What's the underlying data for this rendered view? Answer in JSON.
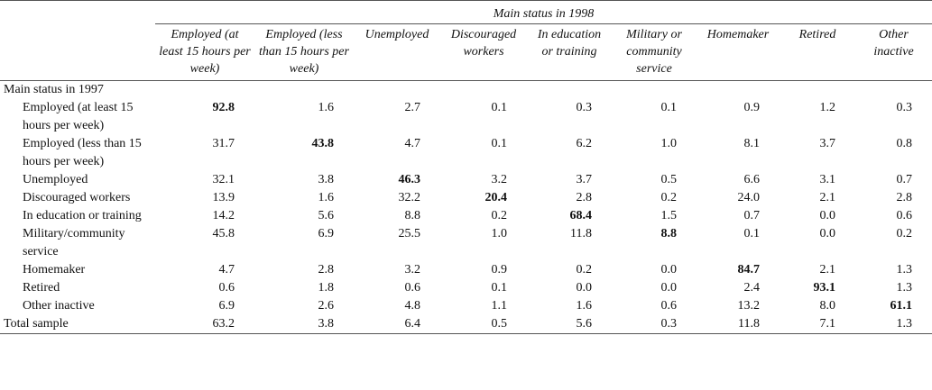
{
  "header": {
    "group_title": "Main status in 1998",
    "columns": [
      "Employed (at least 15 hours per week)",
      "Employed (less than 15 hours per week)",
      "Unemployed",
      "Discouraged workers",
      "In education or training",
      "Military or community service",
      "Homemaker",
      "Retired",
      "Other inactive"
    ]
  },
  "stub_title": "Main status in 1997",
  "rows": [
    {
      "label": "Employed (at least 15 hours per week)",
      "values": [
        "92.8",
        "1.6",
        "2.7",
        "0.1",
        "0.3",
        "0.1",
        "0.9",
        "1.2",
        "0.3"
      ],
      "bold_index": 0
    },
    {
      "label": "Employed (less than 15 hours per week)",
      "values": [
        "31.7",
        "43.8",
        "4.7",
        "0.1",
        "6.2",
        "1.0",
        "8.1",
        "3.7",
        "0.8"
      ],
      "bold_index": 1
    },
    {
      "label": "Unemployed",
      "values": [
        "32.1",
        "3.8",
        "46.3",
        "3.2",
        "3.7",
        "0.5",
        "6.6",
        "3.1",
        "0.7"
      ],
      "bold_index": 2
    },
    {
      "label": "Discouraged workers",
      "values": [
        "13.9",
        "1.6",
        "32.2",
        "20.4",
        "2.8",
        "0.2",
        "24.0",
        "2.1",
        "2.8"
      ],
      "bold_index": 3
    },
    {
      "label": "In education or training",
      "values": [
        "14.2",
        "5.6",
        "8.8",
        "0.2",
        "68.4",
        "1.5",
        "0.7",
        "0.0",
        "0.6"
      ],
      "bold_index": 4
    },
    {
      "label": "Military/community service",
      "values": [
        "45.8",
        "6.9",
        "25.5",
        "1.0",
        "11.8",
        "8.8",
        "0.1",
        "0.0",
        "0.2"
      ],
      "bold_index": 5
    },
    {
      "label": "Homemaker",
      "values": [
        "4.7",
        "2.8",
        "3.2",
        "0.9",
        "0.2",
        "0.0",
        "84.7",
        "2.1",
        "1.3"
      ],
      "bold_index": 6
    },
    {
      "label": "Retired",
      "values": [
        "0.6",
        "1.8",
        "0.6",
        "0.1",
        "0.0",
        "0.0",
        "2.4",
        "93.1",
        "1.3"
      ],
      "bold_index": 7
    },
    {
      "label": "Other inactive",
      "values": [
        "6.9",
        "2.6",
        "4.8",
        "1.1",
        "1.6",
        "0.6",
        "13.2",
        "8.0",
        "61.1"
      ],
      "bold_index": 8
    }
  ],
  "total": {
    "label": "Total sample",
    "values": [
      "63.2",
      "3.8",
      "6.4",
      "0.5",
      "5.6",
      "0.3",
      "11.8",
      "7.1",
      "1.3"
    ]
  }
}
